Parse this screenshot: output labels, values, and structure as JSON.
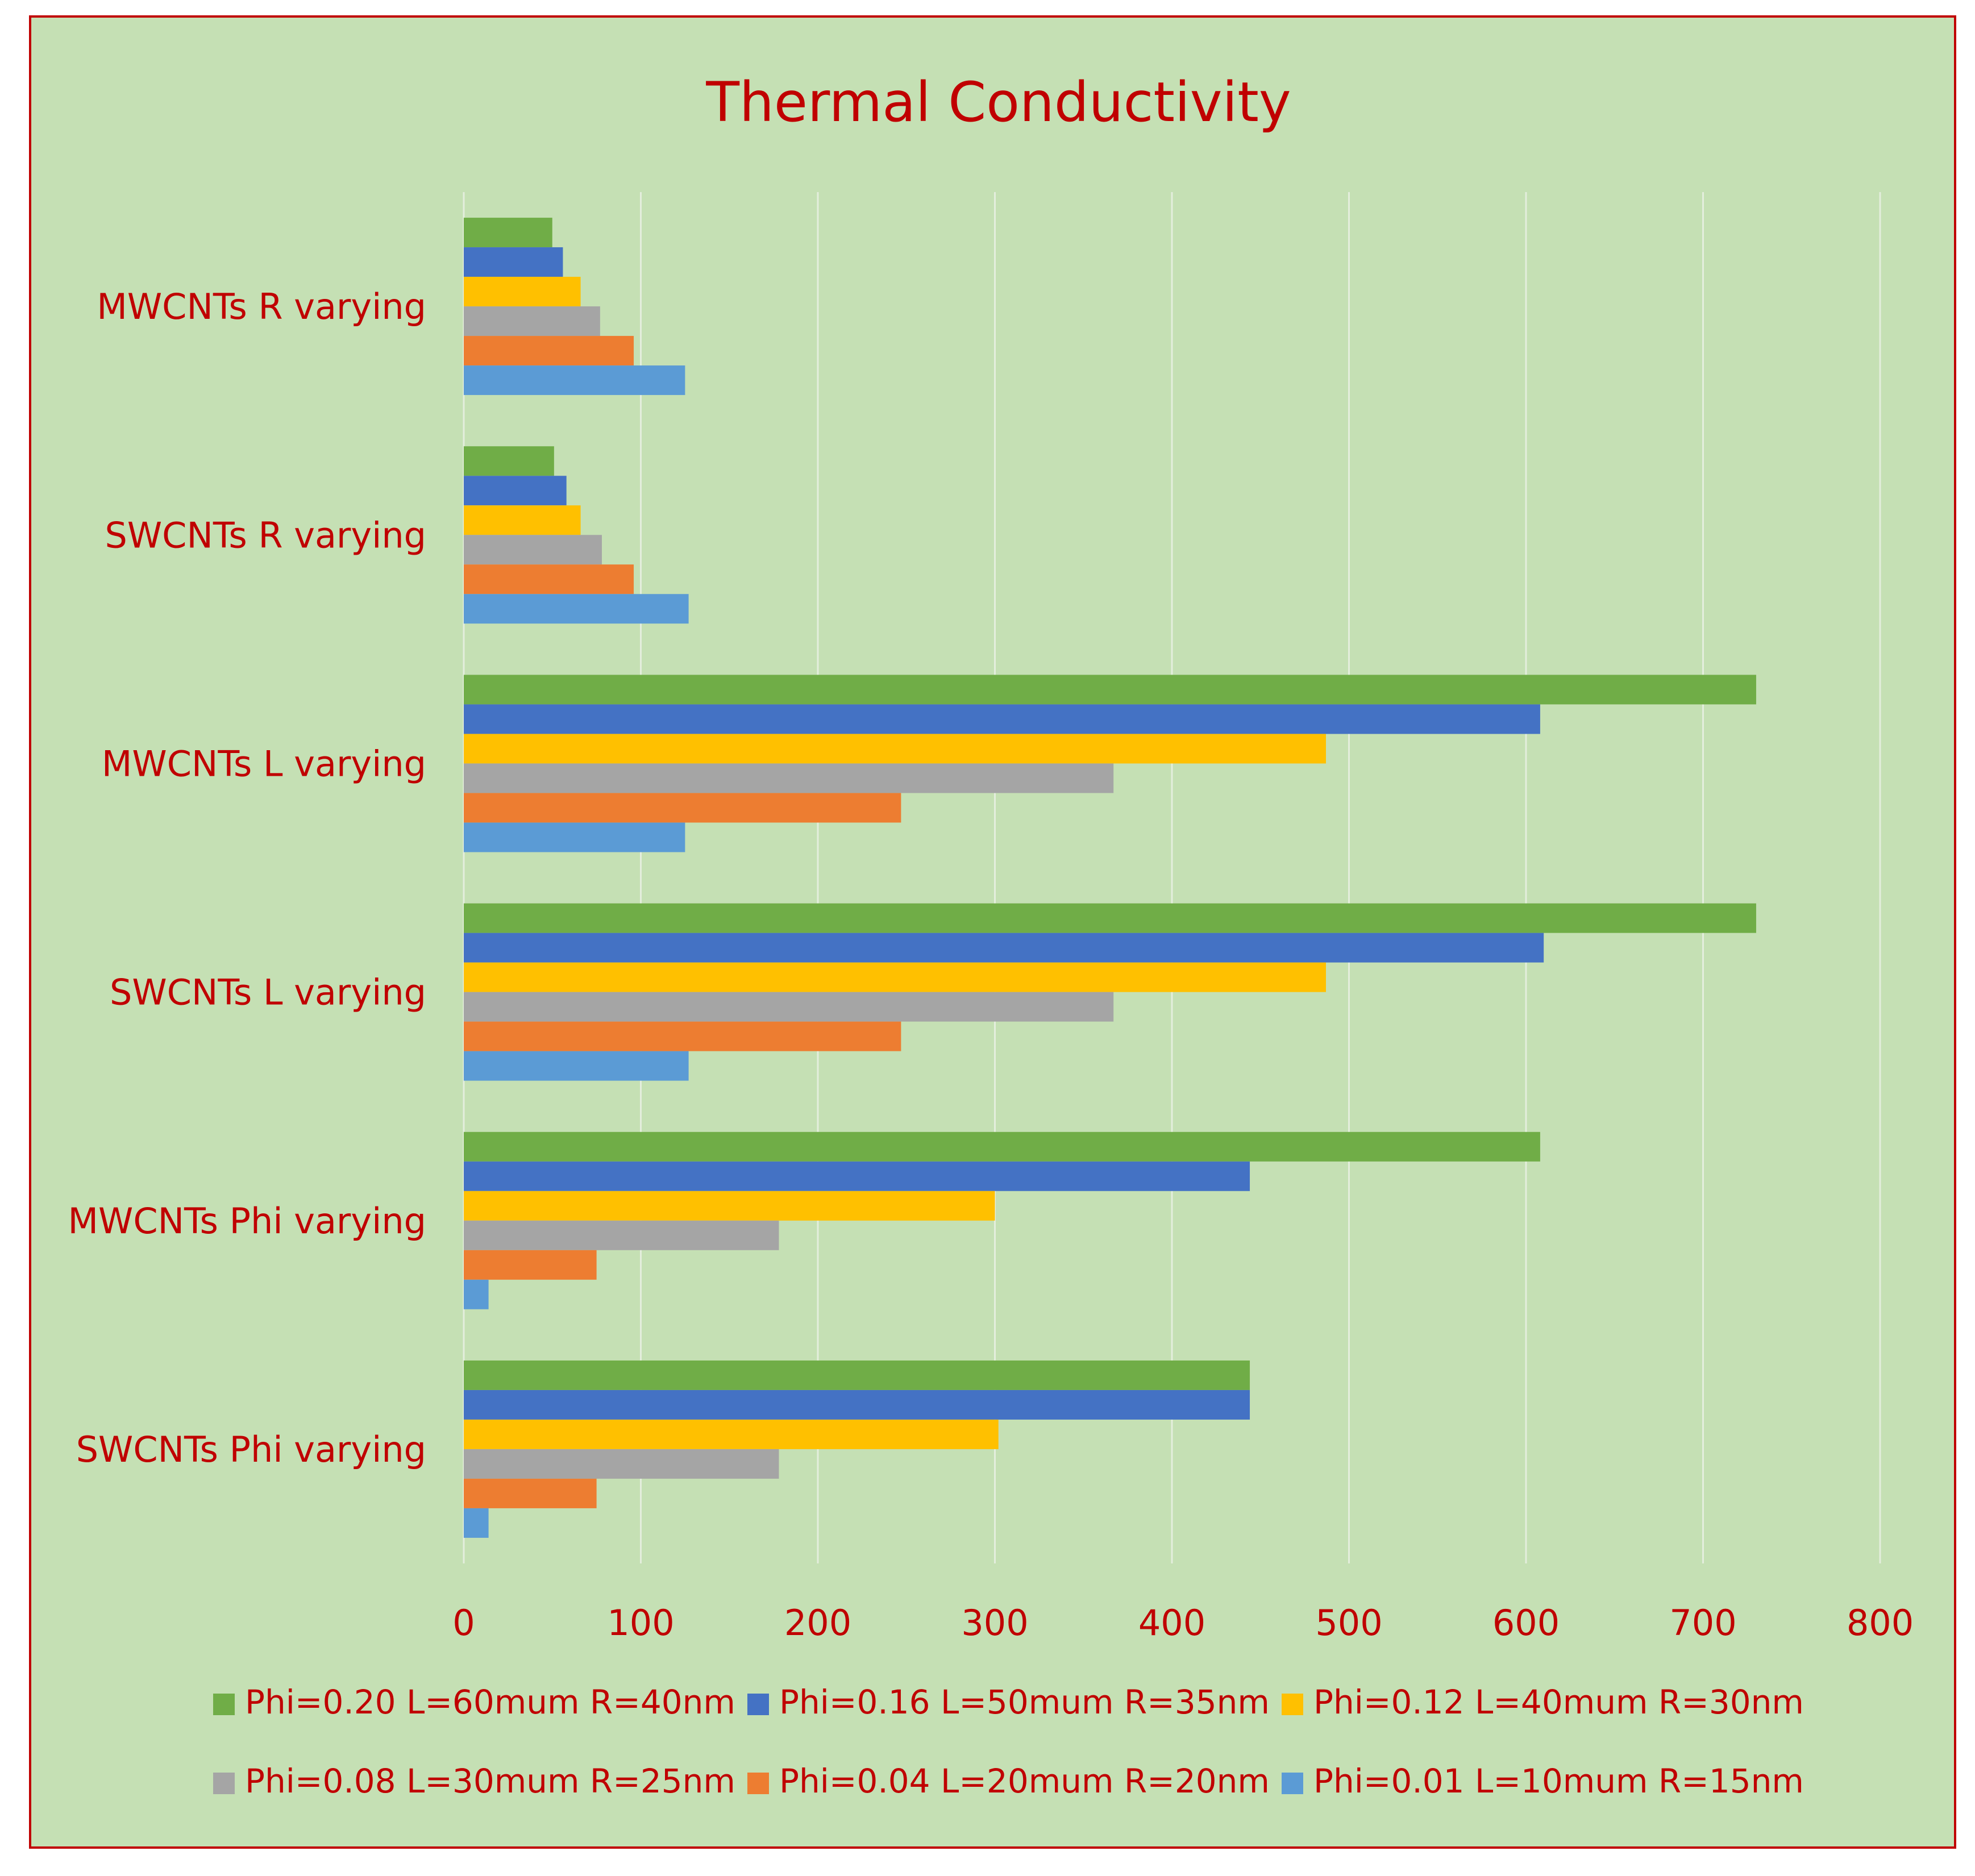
{
  "chart_data": {
    "type": "bar",
    "orientation": "horizontal",
    "title": "Thermal Conductivity",
    "xlabel": "",
    "ylabel": "",
    "xlim": [
      0,
      800
    ],
    "x_ticks": [
      "0",
      "100",
      "200",
      "300",
      "400",
      "500",
      "600",
      "700",
      "800"
    ],
    "grid": true,
    "legend_position": "bottom",
    "categories": [
      "MWCNTs R varying",
      "SWCNTs R varying",
      "MWCNTs L varying",
      "SWCNTs L varying",
      "MWCNTs Phi varying",
      "SWCNTs Phi varying"
    ],
    "series": [
      {
        "name": "Phi=0.20 L=60mum R=40nm",
        "color": "#70ad47",
        "values": [
          50,
          51,
          730,
          730,
          608,
          444
        ]
      },
      {
        "name": "Phi=0.16 L=50mum R=35nm",
        "color": "#4472c4",
        "values": [
          56,
          58,
          608,
          610,
          444,
          444
        ]
      },
      {
        "name": "Phi=0.12 L=40mum R=30nm",
        "color": "#ffc000",
        "values": [
          66,
          66,
          487,
          487,
          300,
          302
        ]
      },
      {
        "name": "Phi=0.08 L=30mum R=25nm",
        "color": "#a5a5a5",
        "values": [
          77,
          78,
          367,
          367,
          178,
          178
        ]
      },
      {
        "name": "Phi=0.04 L=20mum R=20nm",
        "color": "#ed7d31",
        "values": [
          96,
          96,
          247,
          247,
          75,
          75
        ]
      },
      {
        "name": "Phi=0.01 L=10mum R=15nm",
        "color": "#5b9bd5",
        "values": [
          125,
          127,
          125,
          127,
          14,
          14
        ]
      }
    ],
    "colors": {
      "background": "#c5e0b4",
      "border": "#c00000",
      "text": "#c00000",
      "gridline": "#e4eedd"
    }
  }
}
